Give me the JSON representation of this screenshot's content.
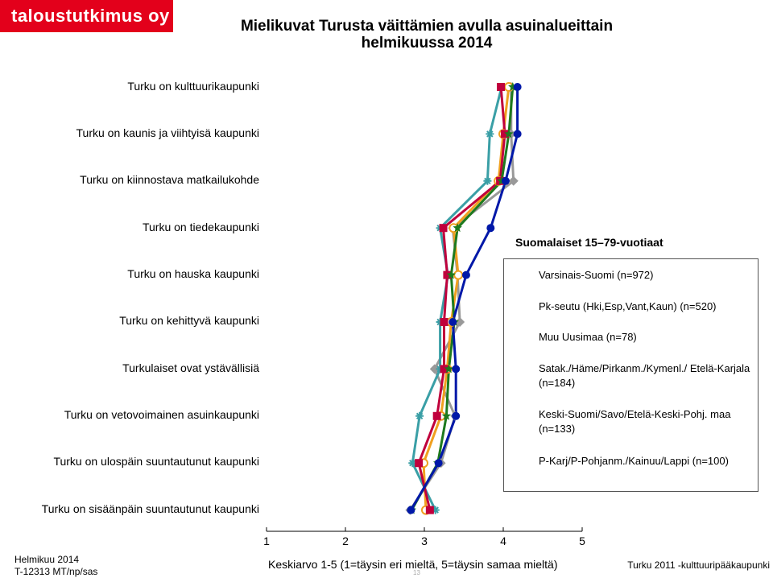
{
  "brand": "taloustutkimus oy",
  "colors": {
    "brand_red": "#e3001b"
  },
  "chart_data": {
    "type": "line",
    "title": "Mielikuvat Turusta väittämien avulla asuinalueittain helmikuussa 2014",
    "title_lines": [
      "Mielikuvat Turusta väittämien avulla asuinalueittain",
      "helmikuussa 2014"
    ],
    "categories": [
      "Turku on kulttuurikaupunki",
      "Turku on kaunis ja viihtyisä kaupunki",
      "Turku on kiinnostava matkailukohde",
      "Turku on tiedekaupunki",
      "Turku on hauska kaupunki",
      "Turku on kehittyvä kaupunki",
      "Turkulaiset ovat ystävällisiä",
      "Turku on vetovoimainen asuinkaupunki",
      "Turku on ulospäin suuntautunut kaupunki",
      "Turku on sisäänpäin suuntautunut kaupunki"
    ],
    "xlim": [
      1,
      5
    ],
    "xticks": [
      "1",
      "2",
      "3",
      "4",
      "5"
    ],
    "xlabel": "Keskiarvo 1-5 (1=täysin eri mieltä, 5=täysin samaa mieltä)",
    "legend_title": "Suomalaiset 15–79-vuotiaat",
    "legend_position": "right",
    "series": [
      {
        "name": "Varsinais-Suomi (n=972)",
        "color": "#0018a8",
        "marker": "circle",
        "values": [
          4.18,
          4.18,
          4.03,
          3.84,
          3.53,
          3.36,
          3.4,
          3.4,
          3.18,
          2.83
        ]
      },
      {
        "name": "Pk-seutu (Hki,Esp,Vant,Kaun) (n=520)",
        "color": "#c0003c",
        "marker": "square",
        "values": [
          3.97,
          4.02,
          3.96,
          3.24,
          3.29,
          3.25,
          3.25,
          3.16,
          2.93,
          3.07
        ]
      },
      {
        "name": "Muu Uusimaa (n=78)",
        "color": "#3a9fa6",
        "marker": "cross",
        "values": [
          3.98,
          3.83,
          3.8,
          3.2,
          3.3,
          3.2,
          3.2,
          2.94,
          2.85,
          3.14
        ]
      },
      {
        "name": "Satak./Häme/Pirkanm./Kymenl./ Etelä-Karjala (n=184)",
        "color": "#f0a020",
        "marker": "open-circle",
        "values": [
          4.07,
          4.0,
          3.94,
          3.37,
          3.43,
          3.34,
          3.29,
          3.21,
          2.99,
          3.02
        ]
      },
      {
        "name": "Keski-Suomi/Savo/Etelä-Keski-Pohj. maa  (n=133)",
        "color": "#1e7a1e",
        "marker": "star",
        "values": [
          4.12,
          4.07,
          3.98,
          3.42,
          3.34,
          3.38,
          3.31,
          3.28,
          3.17,
          2.84
        ]
      },
      {
        "name": "P-Karj/P-Pohjanm./Kainuu/Lappi (n=100)",
        "color": "#999999",
        "marker": "diamond",
        "values": [
          4.1,
          4.1,
          4.13,
          3.36,
          3.42,
          3.45,
          3.13,
          3.39,
          3.21,
          2.82
        ]
      }
    ]
  },
  "footer": {
    "date": "Helmikuu 2014",
    "code": "T-12313 MT/np/sas",
    "right": "Turku 2011 -kulttuuripääkaupunki",
    "page": "13"
  }
}
